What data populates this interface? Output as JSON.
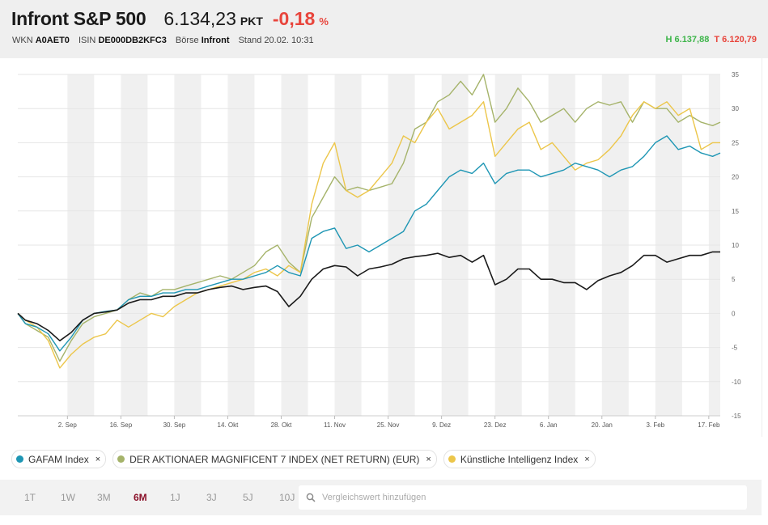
{
  "header": {
    "name": "Infront S&P 500",
    "price": "6.134,23",
    "unit": "PKT",
    "change": "-0,18",
    "pct": "%",
    "wkn_label": "WKN",
    "wkn": "A0AET0",
    "isin_label": "ISIN",
    "isin": "DE000DB2KFC3",
    "exchange_label": "Börse",
    "exchange": "Infront",
    "stand": "Stand 20.02. 10:31",
    "high": "H 6.137,88",
    "low": "T 6.120,79"
  },
  "colors": {
    "sp500": "#1a1a1a",
    "gafam": "#1e96b4",
    "mag7": "#a5b36a",
    "ki": "#ecc64a",
    "negative": "#e8453c",
    "positive": "#3db54a",
    "active_range": "#8a1029"
  },
  "chart_data": {
    "type": "line",
    "x_ticks": [
      "2. Sep",
      "16. Sep",
      "30. Sep",
      "14. Okt",
      "28. Okt",
      "11. Nov",
      "25. Nov",
      "9. Dez",
      "23. Dez",
      "6. Jan",
      "20. Jan",
      "3. Feb",
      "17. Feb"
    ],
    "y_ticks": [
      35,
      30,
      25,
      20,
      15,
      10,
      5,
      0,
      -5,
      -10,
      -15
    ],
    "ylim": [
      -15,
      35
    ],
    "grid": true,
    "x_range": [
      "2024-08-20",
      "2025-02-20"
    ],
    "series": [
      {
        "name": "Infront S&P 500",
        "color": "#1a1a1a",
        "x": [
          "2024-08-20",
          "2024-08-22",
          "2024-08-25",
          "2024-08-28",
          "2024-08-31",
          "2024-09-03",
          "2024-09-06",
          "2024-09-09",
          "2024-09-12",
          "2024-09-15",
          "2024-09-18",
          "2024-09-21",
          "2024-09-24",
          "2024-09-27",
          "2024-09-30",
          "2024-10-03",
          "2024-10-06",
          "2024-10-09",
          "2024-10-12",
          "2024-10-15",
          "2024-10-18",
          "2024-10-21",
          "2024-10-24",
          "2024-10-27",
          "2024-10-30",
          "2024-11-02",
          "2024-11-05",
          "2024-11-08",
          "2024-11-11",
          "2024-11-14",
          "2024-11-17",
          "2024-11-20",
          "2024-11-23",
          "2024-11-26",
          "2024-11-29",
          "2024-12-02",
          "2024-12-05",
          "2024-12-08",
          "2024-12-11",
          "2024-12-14",
          "2024-12-17",
          "2024-12-20",
          "2024-12-23",
          "2024-12-26",
          "2024-12-29",
          "2025-01-01",
          "2025-01-04",
          "2025-01-07",
          "2025-01-10",
          "2025-01-13",
          "2025-01-16",
          "2025-01-19",
          "2025-01-22",
          "2025-01-25",
          "2025-01-28",
          "2025-01-31",
          "2025-02-03",
          "2025-02-06",
          "2025-02-09",
          "2025-02-12",
          "2025-02-15",
          "2025-02-18",
          "2025-02-20"
        ],
        "values": [
          0,
          -1,
          -1.5,
          -2.5,
          -4,
          -2.8,
          -1,
          0,
          0.2,
          0.5,
          1.5,
          2,
          2,
          2.5,
          2.5,
          3,
          3,
          3.5,
          3.8,
          4,
          3.5,
          3.8,
          4,
          3.2,
          1,
          2.5,
          5,
          6.5,
          7,
          6.8,
          5.5,
          6.5,
          6.8,
          7.2,
          8,
          8.3,
          8.5,
          8.8,
          8.2,
          8.5,
          7.5,
          8.5,
          4.2,
          5,
          6.5,
          6.5,
          5,
          5,
          4.5,
          4.5,
          3.5,
          4.8,
          5.5,
          6,
          7,
          8.5,
          8.5,
          7.5,
          8,
          8.5,
          8.5,
          9,
          9
        ]
      },
      {
        "name": "GAFAM Index",
        "color": "#1e96b4",
        "x": [
          "2024-08-20",
          "2024-08-22",
          "2024-08-25",
          "2024-08-28",
          "2024-08-31",
          "2024-09-03",
          "2024-09-06",
          "2024-09-09",
          "2024-09-12",
          "2024-09-15",
          "2024-09-18",
          "2024-09-21",
          "2024-09-24",
          "2024-09-27",
          "2024-09-30",
          "2024-10-03",
          "2024-10-06",
          "2024-10-09",
          "2024-10-12",
          "2024-10-15",
          "2024-10-18",
          "2024-10-21",
          "2024-10-24",
          "2024-10-27",
          "2024-10-30",
          "2024-11-02",
          "2024-11-05",
          "2024-11-08",
          "2024-11-11",
          "2024-11-14",
          "2024-11-17",
          "2024-11-20",
          "2024-11-23",
          "2024-11-26",
          "2024-11-29",
          "2024-12-02",
          "2024-12-05",
          "2024-12-08",
          "2024-12-11",
          "2024-12-14",
          "2024-12-17",
          "2024-12-20",
          "2024-12-23",
          "2024-12-26",
          "2024-12-29",
          "2025-01-01",
          "2025-01-04",
          "2025-01-07",
          "2025-01-10",
          "2025-01-13",
          "2025-01-16",
          "2025-01-19",
          "2025-01-22",
          "2025-01-25",
          "2025-01-28",
          "2025-01-31",
          "2025-02-03",
          "2025-02-06",
          "2025-02-09",
          "2025-02-12",
          "2025-02-15",
          "2025-02-18",
          "2025-02-20"
        ],
        "values": [
          0,
          -1.5,
          -2,
          -3,
          -5.5,
          -3.5,
          -1,
          0,
          0.3,
          0.5,
          2,
          2.5,
          2.5,
          3,
          3,
          3.5,
          3.5,
          4,
          4.5,
          5,
          5,
          5.5,
          6,
          7,
          6,
          5.5,
          11,
          12,
          12.5,
          9.5,
          10,
          9,
          10,
          11,
          12,
          15,
          16,
          18,
          20,
          21,
          20.5,
          22,
          19,
          20.5,
          21,
          21,
          20,
          20.5,
          21,
          22,
          21.5,
          21,
          20,
          21,
          21.5,
          23,
          25,
          26,
          24,
          24.5,
          23.5,
          23,
          23.5
        ]
      },
      {
        "name": "DER AKTIONAER MAGNIFICENT 7 INDEX (NET RETURN) (EUR)",
        "color": "#a5b36a",
        "x": [
          "2024-08-20",
          "2024-08-22",
          "2024-08-25",
          "2024-08-28",
          "2024-08-31",
          "2024-09-03",
          "2024-09-06",
          "2024-09-09",
          "2024-09-12",
          "2024-09-15",
          "2024-09-18",
          "2024-09-21",
          "2024-09-24",
          "2024-09-27",
          "2024-09-30",
          "2024-10-03",
          "2024-10-06",
          "2024-10-09",
          "2024-10-12",
          "2024-10-15",
          "2024-10-18",
          "2024-10-21",
          "2024-10-24",
          "2024-10-27",
          "2024-10-30",
          "2024-11-02",
          "2024-11-05",
          "2024-11-08",
          "2024-11-11",
          "2024-11-14",
          "2024-11-17",
          "2024-11-20",
          "2024-11-23",
          "2024-11-26",
          "2024-11-29",
          "2024-12-02",
          "2024-12-05",
          "2024-12-08",
          "2024-12-11",
          "2024-12-14",
          "2024-12-17",
          "2024-12-20",
          "2024-12-23",
          "2024-12-26",
          "2024-12-29",
          "2025-01-01",
          "2025-01-04",
          "2025-01-07",
          "2025-01-10",
          "2025-01-13",
          "2025-01-16",
          "2025-01-19",
          "2025-01-22",
          "2025-01-25",
          "2025-01-28",
          "2025-01-31",
          "2025-02-03",
          "2025-02-06",
          "2025-02-09",
          "2025-02-12",
          "2025-02-15",
          "2025-02-18",
          "2025-02-20"
        ],
        "values": [
          0,
          -1.5,
          -2.5,
          -3.5,
          -7,
          -4,
          -1.5,
          -0.5,
          0,
          0.5,
          2,
          3,
          2.5,
          3.5,
          3.5,
          4,
          4.5,
          5,
          5.5,
          5,
          6,
          7,
          9,
          10,
          7.5,
          6,
          14,
          17,
          20,
          18,
          18.5,
          18,
          18.5,
          19,
          22,
          27,
          28,
          31,
          32,
          34,
          32,
          35,
          28,
          30,
          33,
          31,
          28,
          29,
          30,
          28,
          30,
          31,
          30.5,
          31,
          28,
          31,
          30,
          30,
          28,
          29,
          28,
          27.5,
          28
        ]
      },
      {
        "name": "Künstliche Intelligenz Index",
        "color": "#ecc64a",
        "x": [
          "2024-08-20",
          "2024-08-22",
          "2024-08-25",
          "2024-08-28",
          "2024-08-31",
          "2024-09-03",
          "2024-09-06",
          "2024-09-09",
          "2024-09-12",
          "2024-09-15",
          "2024-09-18",
          "2024-09-21",
          "2024-09-24",
          "2024-09-27",
          "2024-09-30",
          "2024-10-03",
          "2024-10-06",
          "2024-10-09",
          "2024-10-12",
          "2024-10-15",
          "2024-10-18",
          "2024-10-21",
          "2024-10-24",
          "2024-10-27",
          "2024-10-30",
          "2024-11-02",
          "2024-11-05",
          "2024-11-08",
          "2024-11-11",
          "2024-11-14",
          "2024-11-17",
          "2024-11-20",
          "2024-11-23",
          "2024-11-26",
          "2024-11-29",
          "2024-12-02",
          "2024-12-05",
          "2024-12-08",
          "2024-12-11",
          "2024-12-14",
          "2024-12-17",
          "2024-12-20",
          "2024-12-23",
          "2024-12-26",
          "2024-12-29",
          "2025-01-01",
          "2025-01-04",
          "2025-01-07",
          "2025-01-10",
          "2025-01-13",
          "2025-01-16",
          "2025-01-19",
          "2025-01-22",
          "2025-01-25",
          "2025-01-28",
          "2025-01-31",
          "2025-02-03",
          "2025-02-06",
          "2025-02-09",
          "2025-02-12",
          "2025-02-15",
          "2025-02-18",
          "2025-02-20"
        ],
        "values": [
          0,
          -1,
          -2,
          -4,
          -8,
          -6,
          -4.5,
          -3.5,
          -3,
          -1,
          -2,
          -1,
          0,
          -0.5,
          1,
          2,
          3,
          3.5,
          4,
          4.5,
          5,
          6,
          6.5,
          5.5,
          7,
          6,
          16,
          22,
          25,
          18,
          17,
          18,
          20,
          22,
          26,
          25,
          28,
          30,
          27,
          28,
          29,
          31,
          23,
          25,
          27,
          28,
          24,
          25,
          23,
          21,
          22,
          22.5,
          24,
          26,
          29,
          31,
          30,
          31,
          29,
          30,
          24,
          25,
          25
        ]
      }
    ]
  },
  "legend": [
    {
      "label": "GAFAM Index",
      "color": "#1e96b4",
      "close": "×"
    },
    {
      "label": "DER AKTIONAER MAGNIFICENT 7 INDEX (NET RETURN) (EUR)",
      "color": "#a5b36a",
      "close": "×"
    },
    {
      "label": "Künstliche Intelligenz Index",
      "color": "#ecc64a",
      "close": "×"
    }
  ],
  "ranges": [
    "1T",
    "1W",
    "3M",
    "6M",
    "1J",
    "3J",
    "5J",
    "10J"
  ],
  "active_range": "6M",
  "search": {
    "placeholder": "Vergleichswert hinzufügen"
  }
}
